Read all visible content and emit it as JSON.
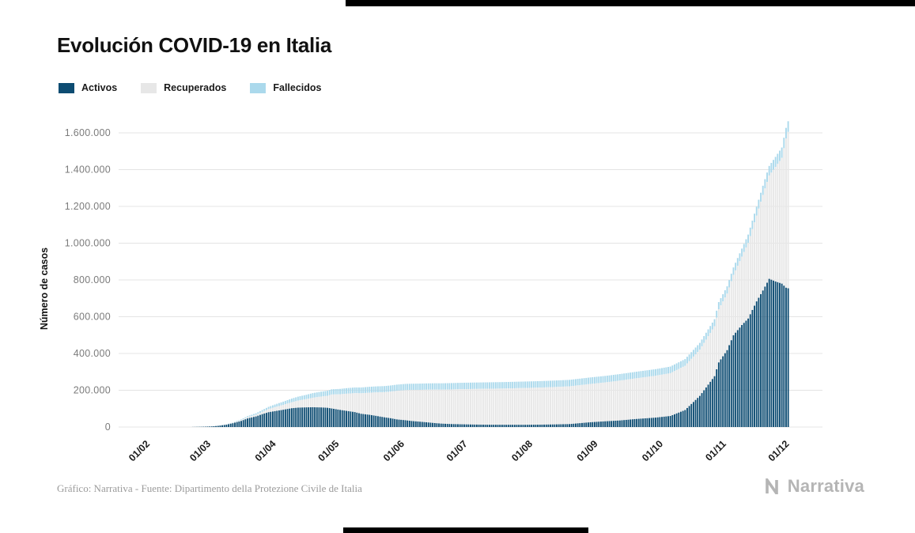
{
  "page": {
    "title": "Evolución COVID-19 en Italia",
    "source_note": "Gráfico: Narrativa - Fuente: Dipartimento della Protezione Civile de Italia",
    "brand": "Narrativa"
  },
  "chart_data": {
    "type": "area",
    "stacked": true,
    "title": "Evolución COVID-19 en Italia",
    "xlabel": "",
    "ylabel": "Número de casos",
    "ylim": [
      0,
      1700000
    ],
    "grid": "horizontal",
    "legend_position": "top-left",
    "series": [
      {
        "name": "Activos",
        "color": "#0d4c72"
      },
      {
        "name": "Recuperados",
        "color": "#e7e7e7"
      },
      {
        "name": "Fallecidos",
        "color": "#abd9ec"
      }
    ],
    "x_unit": "days since 01/02 (2020), daily bars",
    "x_ticks": [
      {
        "day": 0,
        "label": "01/02"
      },
      {
        "day": 29,
        "label": "01/03"
      },
      {
        "day": 60,
        "label": "01/04"
      },
      {
        "day": 90,
        "label": "01/05"
      },
      {
        "day": 121,
        "label": "01/06"
      },
      {
        "day": 151,
        "label": "01/07"
      },
      {
        "day": 182,
        "label": "01/08"
      },
      {
        "day": 213,
        "label": "01/09"
      },
      {
        "day": 244,
        "label": "01/10"
      },
      {
        "day": 274,
        "label": "01/11"
      },
      {
        "day": 304,
        "label": "01/12"
      }
    ],
    "y_ticks": [
      0,
      200000,
      400000,
      600000,
      800000,
      1000000,
      1200000,
      1400000,
      1600000
    ],
    "y_tick_labels": [
      "0",
      "200.000",
      "400.000",
      "600.000",
      "800.000",
      "1.000.000",
      "1.200.000",
      "1.400.000",
      "1.600.000"
    ],
    "point_format": [
      "day",
      "activos",
      "recuperados",
      "fallecidos"
    ],
    "points": [
      [
        0,
        0,
        0,
        0
      ],
      [
        20,
        60,
        0,
        2
      ],
      [
        23,
        220,
        2,
        7
      ],
      [
        26,
        1050,
        50,
        29
      ],
      [
        29,
        1700,
        85,
        35
      ],
      [
        33,
        3350,
        420,
        150
      ],
      [
        36,
        6400,
        620,
        370
      ],
      [
        40,
        12840,
        1050,
        1020
      ],
      [
        43,
        20600,
        2340,
        1810
      ],
      [
        47,
        33200,
        4440,
        4030
      ],
      [
        50,
        46640,
        7020,
        5480
      ],
      [
        54,
        57520,
        9360,
        7500
      ],
      [
        57,
        70070,
        12380,
        10020
      ],
      [
        60,
        80570,
        16850,
        12430
      ],
      [
        64,
        88270,
        22840,
        15360
      ],
      [
        67,
        94070,
        26490,
        17670
      ],
      [
        71,
        102250,
        32530,
        19900
      ],
      [
        74,
        105420,
        38090,
        21650
      ],
      [
        78,
        106960,
        44930,
        23660
      ],
      [
        81,
        107700,
        51600,
        25090
      ],
      [
        85,
        106530,
        59210,
        26640
      ],
      [
        88,
        104660,
        64930,
        27680
      ],
      [
        90,
        100940,
        75950,
        28240
      ],
      [
        94,
        93190,
        85230,
        29080
      ],
      [
        97,
        87960,
        93250,
        30200
      ],
      [
        101,
        81270,
        103030,
        30910
      ],
      [
        104,
        72070,
        111540,
        31610
      ],
      [
        108,
        66550,
        120200,
        32170
      ],
      [
        111,
        60960,
        127330,
        32620
      ],
      [
        115,
        52940,
        136720,
        33070
      ],
      [
        118,
        47990,
        144660,
        33340
      ],
      [
        121,
        41460,
        155630,
        33530
      ],
      [
        125,
        36980,
        163780,
        33770
      ],
      [
        128,
        32870,
        168650,
        33960
      ],
      [
        132,
        29000,
        173090,
        34170
      ],
      [
        135,
        25910,
        177010,
        34350
      ],
      [
        139,
        21540,
        181910,
        34510
      ],
      [
        142,
        18660,
        184590,
        34610
      ],
      [
        146,
        16500,
        187620,
        34720
      ],
      [
        151,
        15060,
        190720,
        34790
      ],
      [
        158,
        13460,
        193640,
        34910
      ],
      [
        165,
        12460,
        195810,
        35020
      ],
      [
        172,
        12370,
        197160,
        35070
      ],
      [
        182,
        12230,
        200230,
        35150
      ],
      [
        189,
        12920,
        201640,
        35190
      ],
      [
        196,
        14250,
        203330,
        35230
      ],
      [
        203,
        16010,
        205200,
        35420
      ],
      [
        213,
        26080,
        208200,
        35490
      ],
      [
        220,
        31190,
        211270,
        35530
      ],
      [
        227,
        35710,
        216810,
        35590
      ],
      [
        234,
        43160,
        220670,
        35660
      ],
      [
        244,
        51260,
        227700,
        35890
      ],
      [
        251,
        60130,
        232680,
        36080
      ],
      [
        258,
        92440,
        240600,
        36430
      ],
      [
        265,
        169300,
        251460,
        36970
      ],
      [
        272,
        276460,
        271990,
        37910
      ],
      [
        274,
        351390,
        289430,
        38620
      ],
      [
        278,
        418140,
        307380,
        39760
      ],
      [
        281,
        499120,
        327840,
        41060
      ],
      [
        285,
        554840,
        372110,
        43590
      ],
      [
        288,
        590110,
        411430,
        45230
      ],
      [
        292,
        683320,
        467120,
        47870
      ],
      [
        295,
        742500,
        520020,
        49820
      ],
      [
        298,
        805950,
        562160,
        52030
      ],
      [
        301,
        791700,
        622760,
        54900
      ],
      [
        304,
        779950,
        683880,
        56360
      ],
      [
        306,
        757810,
        811540,
        57650
      ],
      [
        307,
        754600,
        850500,
        58040
      ]
    ]
  }
}
